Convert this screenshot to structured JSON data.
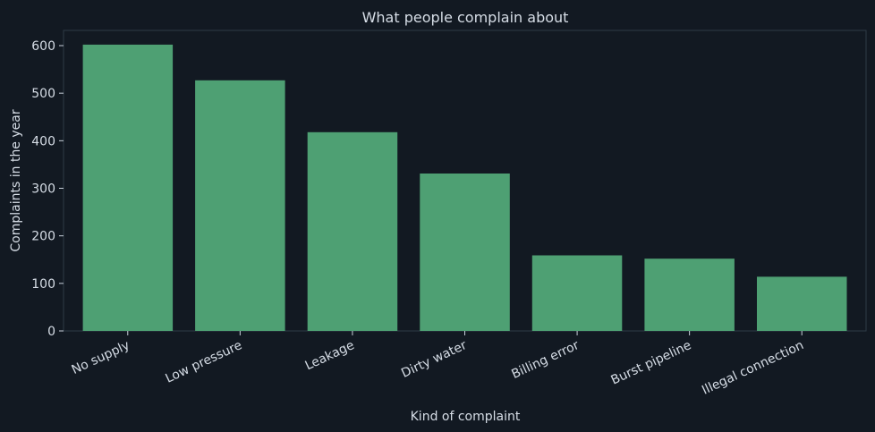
{
  "chart_data": {
    "type": "bar",
    "title": "What people complain about",
    "xlabel": "Kind of complaint",
    "ylabel": "Complaints in the year",
    "categories": [
      "No supply",
      "Low pressure",
      "Leakage",
      "Dirty water",
      "Billing error",
      "Burst pipeline",
      "Illegal connection"
    ],
    "values": [
      602,
      527,
      418,
      331,
      159,
      152,
      114
    ],
    "ylim": [
      0,
      632
    ],
    "yticks": [
      0,
      100,
      200,
      300,
      400,
      500,
      600
    ],
    "grid": false,
    "legend": "none",
    "colors": {
      "background": "#121922",
      "bar": "#4ea073",
      "text": "#d6dde6",
      "axis": "#c8d0da",
      "frame": "#2e3a46"
    }
  }
}
